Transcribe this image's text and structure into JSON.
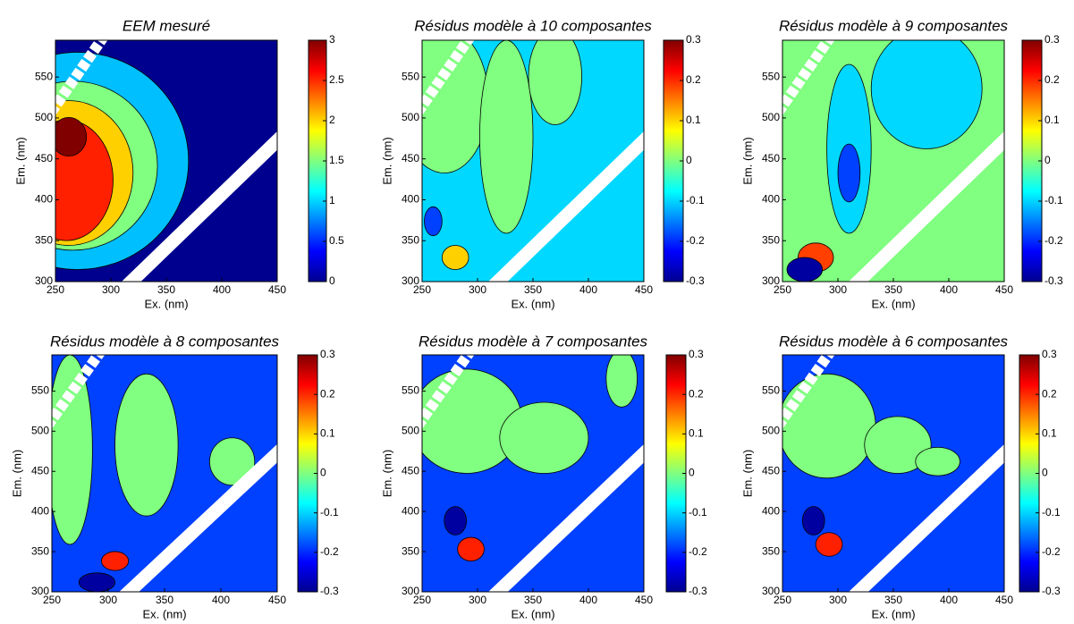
{
  "chart_data": [
    {
      "type": "contour",
      "title": "EEM mesuré",
      "x_label": "Ex. (nm)",
      "y_label": "Em. (nm)",
      "xlim": [
        250,
        450
      ],
      "xticks": [
        250,
        300,
        350,
        400,
        450
      ],
      "ylim": [
        300,
        595
      ],
      "yticks": [
        300,
        350,
        400,
        450,
        500,
        550
      ],
      "colormap": "jet",
      "clim": [
        0,
        3
      ],
      "cticks": [
        0,
        0.5,
        1,
        1.5,
        2,
        2.5,
        3
      ]
    },
    {
      "type": "contour",
      "title": "Résidus modèle à 10 composantes",
      "x_label": "Ex. (nm)",
      "y_label": "Em. (nm)",
      "xlim": [
        250,
        450
      ],
      "xticks": [
        250,
        300,
        350,
        400,
        450
      ],
      "ylim": [
        300,
        595
      ],
      "yticks": [
        300,
        350,
        400,
        450,
        500,
        550
      ],
      "colormap": "jet",
      "clim": [
        -0.3,
        0.3
      ],
      "cticks": [
        -0.3,
        -0.2,
        -0.1,
        0,
        0.1,
        0.2,
        0.3
      ]
    },
    {
      "type": "contour",
      "title": "Résidus modèle à 9 composantes",
      "x_label": "Ex. (nm)",
      "y_label": "Em. (nm)",
      "xlim": [
        250,
        450
      ],
      "xticks": [
        250,
        300,
        350,
        400,
        450
      ],
      "ylim": [
        300,
        595
      ],
      "yticks": [
        300,
        350,
        400,
        450,
        500,
        550
      ],
      "colormap": "jet",
      "clim": [
        -0.3,
        0.3
      ],
      "cticks": [
        -0.3,
        -0.2,
        -0.1,
        0,
        0.1,
        0.2,
        0.3
      ]
    },
    {
      "type": "contour",
      "title": "Résidus modèle à 8 composantes",
      "x_label": "Ex. (nm)",
      "y_label": "Em. (nm)",
      "xlim": [
        250,
        450
      ],
      "xticks": [
        250,
        300,
        350,
        400,
        450
      ],
      "ylim": [
        300,
        595
      ],
      "yticks": [
        300,
        350,
        400,
        450,
        500,
        550
      ],
      "colormap": "jet",
      "clim": [
        -0.3,
        0.3
      ],
      "cticks": [
        -0.3,
        -0.2,
        -0.1,
        0,
        0.1,
        0.2,
        0.3
      ]
    },
    {
      "type": "contour",
      "title": "Résidus modèle à 7 composantes",
      "x_label": "Ex. (nm)",
      "y_label": "Em. (nm)",
      "xlim": [
        250,
        450
      ],
      "xticks": [
        250,
        300,
        350,
        400,
        450
      ],
      "ylim": [
        300,
        595
      ],
      "yticks": [
        300,
        350,
        400,
        450,
        500,
        550
      ],
      "colormap": "jet",
      "clim": [
        -0.3,
        0.3
      ],
      "cticks": [
        -0.3,
        -0.2,
        -0.1,
        0,
        0.1,
        0.2,
        0.3
      ]
    },
    {
      "type": "contour",
      "title": "Résidus modèle à 6 composantes",
      "x_label": "Ex. (nm)",
      "y_label": "Em. (nm)",
      "xlim": [
        250,
        450
      ],
      "xticks": [
        250,
        300,
        350,
        400,
        450
      ],
      "ylim": [
        300,
        595
      ],
      "yticks": [
        300,
        350,
        400,
        450,
        500,
        550
      ],
      "colormap": "jet",
      "clim": [
        -0.3,
        0.3
      ],
      "cticks": [
        -0.3,
        -0.2,
        -0.1,
        0,
        0.1,
        0.2,
        0.3
      ]
    }
  ]
}
